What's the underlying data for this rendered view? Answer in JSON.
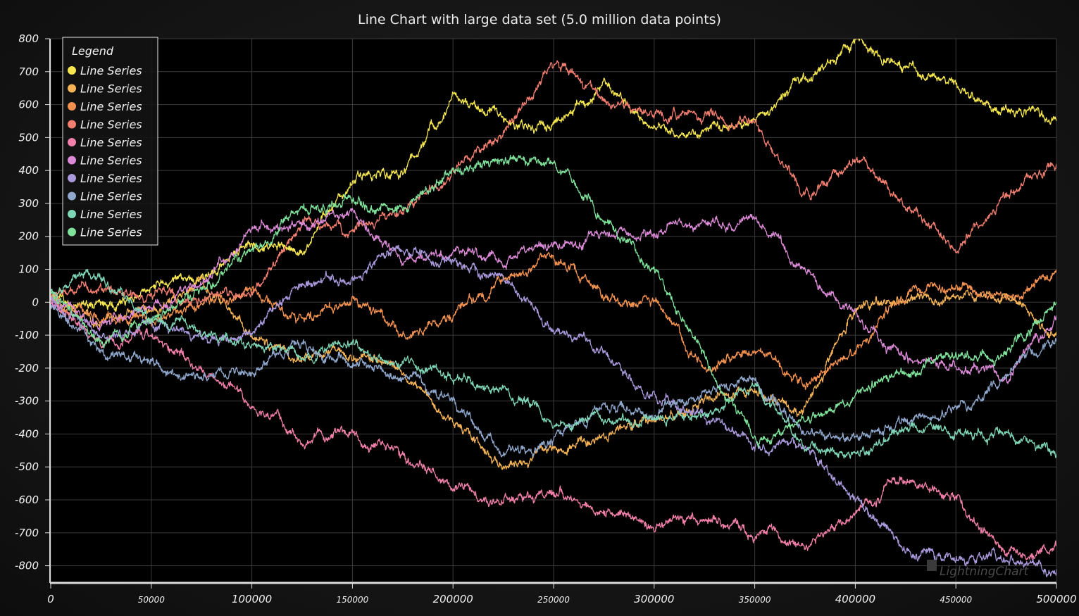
{
  "chart_data": {
    "type": "line",
    "title": "Line Chart with large data set (5.0 million data points)",
    "xlabel": "",
    "ylabel": "",
    "xlim": [
      0,
      500000
    ],
    "ylim": [
      -850,
      800
    ],
    "grid": true,
    "legend_position": "top-left",
    "x_ticks": [
      0,
      50000,
      100000,
      150000,
      200000,
      250000,
      300000,
      350000,
      400000,
      450000,
      500000
    ],
    "x_tick_labels": [
      "0",
      "50000",
      "100000",
      "150000",
      "200000",
      "250000",
      "300000",
      "350000",
      "400000",
      "450000",
      "500000"
    ],
    "y_ticks": [
      800,
      700,
      600,
      500,
      400,
      300,
      200,
      100,
      0,
      -100,
      -200,
      -300,
      -400,
      -500,
      -600,
      -700,
      -800
    ],
    "y_tick_labels": [
      "800",
      "700",
      "600",
      "500",
      "400",
      "300",
      "200",
      "100",
      "0",
      "-100",
      "-200",
      "-300",
      "-400",
      "-500",
      "-600",
      "-700",
      "-800"
    ],
    "legend": {
      "title": "Legend",
      "items": [
        "Line Series",
        "Line Series",
        "Line Series",
        "Line Series",
        "Line Series",
        "Line Series",
        "Line Series",
        "Line Series",
        "Line Series",
        "Line Series"
      ]
    },
    "x": [
      0,
      25000,
      50000,
      75000,
      100000,
      125000,
      150000,
      175000,
      200000,
      225000,
      250000,
      275000,
      300000,
      325000,
      350000,
      375000,
      400000,
      425000,
      450000,
      475000,
      500000
    ],
    "series": [
      {
        "color": "#f6e74f",
        "values": [
          10,
          -20,
          40,
          80,
          180,
          150,
          380,
          390,
          610,
          560,
          540,
          650,
          530,
          520,
          550,
          680,
          790,
          700,
          650,
          580,
          550
        ]
      },
      {
        "color": "#f6b456",
        "values": [
          0,
          -50,
          -30,
          50,
          -100,
          -180,
          -150,
          -220,
          -350,
          -510,
          -460,
          -400,
          -360,
          -300,
          -260,
          -330,
          -10,
          0,
          20,
          20,
          -100
        ]
      },
      {
        "color": "#f2914f",
        "values": [
          10,
          -40,
          -60,
          -20,
          40,
          -70,
          20,
          -110,
          -50,
          70,
          140,
          20,
          10,
          -210,
          -130,
          -250,
          -150,
          30,
          50,
          20,
          90
        ]
      },
      {
        "color": "#f27e6f",
        "values": [
          20,
          40,
          20,
          10,
          30,
          240,
          220,
          280,
          400,
          520,
          720,
          620,
          560,
          570,
          540,
          320,
          440,
          300,
          160,
          330,
          420
        ]
      },
      {
        "color": "#f27fa9",
        "values": [
          0,
          -120,
          -100,
          -200,
          -320,
          -420,
          -400,
          -460,
          -560,
          -600,
          -580,
          -620,
          -680,
          -640,
          -700,
          -740,
          -640,
          -520,
          -600,
          -760,
          -740
        ]
      },
      {
        "color": "#dc8ad8",
        "values": [
          10,
          -80,
          -20,
          60,
          220,
          220,
          280,
          120,
          160,
          130,
          160,
          210,
          200,
          230,
          250,
          110,
          -40,
          -180,
          -190,
          -230,
          -40
        ]
      },
      {
        "color": "#a998db",
        "values": [
          20,
          -110,
          -70,
          -120,
          -100,
          60,
          80,
          160,
          120,
          80,
          -80,
          -150,
          -300,
          -350,
          -430,
          -440,
          -600,
          -770,
          -770,
          -780,
          -810
        ]
      },
      {
        "color": "#8fa7cc",
        "values": [
          0,
          -150,
          -190,
          -230,
          -200,
          -130,
          -180,
          -220,
          -300,
          -450,
          -430,
          -310,
          -340,
          -280,
          -250,
          -390,
          -420,
          -360,
          -330,
          -230,
          -120
        ]
      },
      {
        "color": "#7ed6b6",
        "values": [
          40,
          80,
          -60,
          -80,
          -140,
          -150,
          -130,
          -190,
          -230,
          -260,
          -360,
          -360,
          -350,
          -360,
          -240,
          -440,
          -460,
          -380,
          -380,
          -400,
          -460
        ]
      },
      {
        "color": "#7ee29a",
        "values": [
          30,
          -120,
          -60,
          50,
          150,
          280,
          300,
          280,
          400,
          440,
          420,
          260,
          90,
          -180,
          -420,
          -370,
          -280,
          -200,
          -160,
          -160,
          0
        ]
      }
    ]
  },
  "watermark": "LightningChart"
}
